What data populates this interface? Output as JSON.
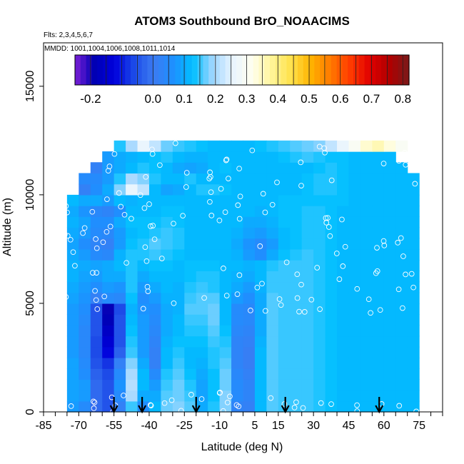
{
  "chart_data": {
    "type": "heatmap",
    "title": "ATOM3 Southbound BrO_NOAACIMS",
    "subtitle_flights": "Flts: 2,3,4,5,6,7",
    "subtitle_dates": "MMDD: 1001,1004,1006,1008,1011,1014",
    "xlabel": "Latitude (deg N)",
    "ylabel": "Altitude (m)",
    "xlim": [
      -85,
      85
    ],
    "ylim": [
      0,
      17000
    ],
    "x_ticks": [
      -85,
      -70,
      -55,
      -40,
      -25,
      -10,
      5,
      15,
      30,
      45,
      60,
      75
    ],
    "y_ticks": [
      0,
      5000,
      10000,
      15000
    ],
    "colorbar": {
      "range": [
        -0.25,
        0.82
      ],
      "ticks": [
        -0.2,
        0.0,
        0.1,
        0.2,
        0.3,
        0.4,
        0.5,
        0.6,
        0.7,
        0.8
      ],
      "tick_labels": [
        "-0.2",
        "0.0",
        "0.1",
        "0.2",
        "0.3",
        "0.4",
        "0.5",
        "0.6",
        "0.7",
        "0.8"
      ],
      "colors": [
        "#7b1fd6",
        "#0000b4",
        "#0000dc",
        "#1c4ae8",
        "#3b7bf2",
        "#1e90ff",
        "#00bfff",
        "#9fd6ff",
        "#e8f4ff",
        "#fffff0",
        "#fff59a",
        "#ffe14a",
        "#ffb300",
        "#ff7a00",
        "#ff3b00",
        "#e00000",
        "#b00000",
        "#7a1a1a"
      ]
    },
    "flight_arrows_lat": [
      -55,
      -43,
      -20,
      18,
      58
    ],
    "cells": {
      "lat_start": -75,
      "lat_step": 5,
      "alt_start": 0,
      "alt_step": 500,
      "values": [
        [
          0.08,
          0.05,
          -0.02,
          -0.05,
          0.02,
          0.15,
          0.06,
          0.12,
          0.17,
          0.18,
          0.16,
          0.1,
          0.14,
          0.18,
          0.03,
          0.02,
          0.12,
          0.16,
          0.15,
          0.15,
          0.15,
          0.14,
          0.13,
          0.12,
          0.12,
          0.12,
          0.12,
          0.12,
          0.12,
          0.12
        ],
        [
          0.09,
          0.08,
          -0.02,
          -0.05,
          0.05,
          0.2,
          0.1,
          0.1,
          0.16,
          0.17,
          0.15,
          0.09,
          0.13,
          0.18,
          0.05,
          0.03,
          0.12,
          0.16,
          0.15,
          0.15,
          0.15,
          0.14,
          0.13,
          0.12,
          0.12,
          0.12,
          0.12,
          0.12,
          0.12,
          0.12
        ],
        [
          0.09,
          0.08,
          -0.02,
          -0.05,
          0.07,
          0.21,
          0.12,
          0.08,
          0.15,
          0.17,
          0.14,
          0.09,
          0.13,
          0.17,
          0.05,
          0.03,
          0.12,
          0.16,
          0.15,
          0.15,
          0.15,
          0.14,
          0.13,
          0.12,
          0.12,
          0.12,
          0.12,
          0.12,
          0.12,
          0.12
        ],
        [
          0.09,
          0.06,
          -0.03,
          -0.06,
          0.05,
          0.2,
          0.12,
          0.05,
          0.14,
          0.16,
          0.13,
          0.1,
          0.13,
          0.17,
          0.04,
          0.02,
          0.12,
          0.16,
          0.15,
          0.15,
          0.15,
          0.14,
          0.13,
          0.12,
          0.12,
          0.12,
          0.12,
          0.12,
          0.12,
          0.12
        ],
        [
          0.09,
          0.05,
          -0.05,
          -0.08,
          0.02,
          0.18,
          0.1,
          0.02,
          0.12,
          0.15,
          0.12,
          0.11,
          0.14,
          0.16,
          0.03,
          0.01,
          0.12,
          0.16,
          0.15,
          0.15,
          0.15,
          0.14,
          0.13,
          0.12,
          0.12,
          0.12,
          0.12,
          0.12,
          0.12,
          0.12
        ],
        [
          0.08,
          0.04,
          -0.06,
          -0.12,
          -0.03,
          0.15,
          0.08,
          0.02,
          0.12,
          0.14,
          0.12,
          0.12,
          0.14,
          0.15,
          0.03,
          0.01,
          0.12,
          0.16,
          0.15,
          0.15,
          0.15,
          0.14,
          0.13,
          0.12,
          0.12,
          0.12,
          0.12,
          0.12,
          0.12,
          0.12
        ],
        [
          0.08,
          0.04,
          -0.06,
          -0.14,
          -0.05,
          0.14,
          0.08,
          0.03,
          0.11,
          0.13,
          0.13,
          0.13,
          0.15,
          0.14,
          0.03,
          0.02,
          0.11,
          0.16,
          0.15,
          0.15,
          0.15,
          0.14,
          0.13,
          0.12,
          0.12,
          0.12,
          0.12,
          0.12,
          0.12,
          0.12
        ],
        [
          0.08,
          0.04,
          -0.05,
          -0.16,
          -0.05,
          0.13,
          0.08,
          0.04,
          0.1,
          0.12,
          0.14,
          0.14,
          0.16,
          0.13,
          0.04,
          0.03,
          0.1,
          0.16,
          0.15,
          0.15,
          0.15,
          0.14,
          0.13,
          0.12,
          0.12,
          0.12,
          0.12,
          0.12,
          0.12,
          0.12
        ],
        [
          0.08,
          0.05,
          -0.05,
          -0.18,
          -0.05,
          0.12,
          0.08,
          0.05,
          0.1,
          0.12,
          0.15,
          0.15,
          0.17,
          0.12,
          0.05,
          0.04,
          0.1,
          0.16,
          0.15,
          0.15,
          0.15,
          0.14,
          0.13,
          0.12,
          0.12,
          0.12,
          0.12,
          0.12,
          0.12,
          0.12
        ],
        [
          0.08,
          0.06,
          -0.05,
          -0.19,
          -0.06,
          0.11,
          0.07,
          0.06,
          0.1,
          0.11,
          0.16,
          0.16,
          0.17,
          0.12,
          0.05,
          0.04,
          0.1,
          0.16,
          0.15,
          0.15,
          0.15,
          0.14,
          0.13,
          0.12,
          0.12,
          0.12,
          0.12,
          0.12,
          0.12,
          0.12
        ],
        [
          0.09,
          0.07,
          0.02,
          0.05,
          0.04,
          0.13,
          0.06,
          0.08,
          0.11,
          0.11,
          0.15,
          0.16,
          0.16,
          0.12,
          0.08,
          0.06,
          0.1,
          0.16,
          0.15,
          0.15,
          0.15,
          0.14,
          0.13,
          0.12,
          0.12,
          0.12,
          0.12,
          0.12,
          0.12,
          0.12
        ],
        [
          0.1,
          0.08,
          0.06,
          0.08,
          0.07,
          0.14,
          0.08,
          0.1,
          0.12,
          0.11,
          0.14,
          0.15,
          0.14,
          0.12,
          0.1,
          0.08,
          0.11,
          0.15,
          0.15,
          0.15,
          0.15,
          0.14,
          0.13,
          0.12,
          0.12,
          0.12,
          0.12,
          0.12,
          0.12,
          0.12
        ],
        [
          0.11,
          0.09,
          0.08,
          0.1,
          0.1,
          0.14,
          0.1,
          0.12,
          0.12,
          0.12,
          0.13,
          0.14,
          0.14,
          0.12,
          0.11,
          0.1,
          0.12,
          0.15,
          0.15,
          0.15,
          0.15,
          0.14,
          0.13,
          0.12,
          0.12,
          0.12,
          0.12,
          0.12,
          0.12,
          0.12
        ],
        [
          0.11,
          0.1,
          0.09,
          0.1,
          0.12,
          0.14,
          0.12,
          0.13,
          0.13,
          0.12,
          0.13,
          0.13,
          0.13,
          0.12,
          0.12,
          0.11,
          0.12,
          0.14,
          0.15,
          0.15,
          0.15,
          0.14,
          0.13,
          0.12,
          0.12,
          0.12,
          0.12,
          0.12,
          0.12,
          0.12
        ],
        [
          0.1,
          0.08,
          0.05,
          0.04,
          0.11,
          0.14,
          0.14,
          0.15,
          0.14,
          0.13,
          0.12,
          0.12,
          0.12,
          0.12,
          0.11,
          0.08,
          0.06,
          0.1,
          0.13,
          0.14,
          0.15,
          0.14,
          0.13,
          0.12,
          0.12,
          0.12,
          0.12,
          0.12,
          0.12,
          0.12
        ],
        [
          0.09,
          0.06,
          0.03,
          0.02,
          0.08,
          0.13,
          0.14,
          0.16,
          0.15,
          0.14,
          0.12,
          0.12,
          0.12,
          0.12,
          0.1,
          0.07,
          0.05,
          0.08,
          0.12,
          0.13,
          0.14,
          0.14,
          0.13,
          0.12,
          0.12,
          0.12,
          0.12,
          0.12,
          0.12,
          0.12
        ],
        [
          0.1,
          0.08,
          0.05,
          0.04,
          0.08,
          0.12,
          0.13,
          0.14,
          0.15,
          0.14,
          0.12,
          0.12,
          0.12,
          0.12,
          0.11,
          0.09,
          0.08,
          0.1,
          0.12,
          0.13,
          0.14,
          0.14,
          0.13,
          0.12,
          0.12,
          0.12,
          0.12,
          0.12,
          0.12,
          0.12
        ],
        [
          0.11,
          0.09,
          0.06,
          0.06,
          0.1,
          0.13,
          0.13,
          0.13,
          0.14,
          0.13,
          0.12,
          0.12,
          0.12,
          0.12,
          0.12,
          0.1,
          0.1,
          0.11,
          0.13,
          0.13,
          0.14,
          0.14,
          0.13,
          0.12,
          0.12,
          0.12,
          0.12,
          0.12,
          0.12,
          0.12
        ],
        [
          0.1,
          0.07,
          0.04,
          0.03,
          0.06,
          0.12,
          0.12,
          0.12,
          0.13,
          0.13,
          0.12,
          0.12,
          0.12,
          0.12,
          0.12,
          0.12,
          0.11,
          0.12,
          0.13,
          0.13,
          0.14,
          0.14,
          0.13,
          0.12,
          0.12,
          0.12,
          0.12,
          0.12,
          0.12,
          0.12
        ],
        [
          0.12,
          0.1,
          0.1,
          0.08,
          0.12,
          0.11,
          0.12,
          0.12,
          0.12,
          0.12,
          0.12,
          0.12,
          0.12,
          0.12,
          0.12,
          0.12,
          0.12,
          0.12,
          0.13,
          0.13,
          0.13,
          0.13,
          0.13,
          0.13,
          0.12,
          0.12,
          0.12,
          0.12,
          0.12,
          0.12
        ],
        [
          0.1,
          0.02,
          0.06,
          0.1,
          0.18,
          0.26,
          0.22,
          0.12,
          0.09,
          0.1,
          0.12,
          0.14,
          0.14,
          0.13,
          0.12,
          0.12,
          0.12,
          0.12,
          0.12,
          0.12,
          0.13,
          0.14,
          0.14,
          0.13,
          0.12,
          0.12,
          0.12,
          0.12,
          0.12,
          0.12
        ],
        [
          0.1,
          0.05,
          0.05,
          0.08,
          0.14,
          0.2,
          0.18,
          0.14,
          0.12,
          0.12,
          0.14,
          0.12,
          0.12,
          0.12,
          0.12,
          0.12,
          0.12,
          0.12,
          0.12,
          0.12,
          0.13,
          0.14,
          0.14,
          0.13,
          0.12,
          0.12,
          0.12,
          0.12,
          0.12,
          0.12
        ],
        [
          0.03,
          0.04,
          0.02,
          0.08,
          0.1,
          0.12,
          0.14,
          0.13,
          0.12,
          0.1,
          0.09,
          0.1,
          0.12,
          0.13,
          0.12,
          0.12,
          0.12,
          0.12,
          0.12,
          0.12,
          0.12,
          0.13,
          0.14,
          0.13,
          0.12,
          0.12,
          0.12,
          0.12,
          0.12,
          0.12
        ],
        [
          0.05,
          0.04,
          0.05,
          0.08,
          0.1,
          0.11,
          0.12,
          0.13,
          0.14,
          0.12,
          0.11,
          0.11,
          0.12,
          0.12,
          0.12,
          0.12,
          0.12,
          0.12,
          0.13,
          0.14,
          0.15,
          0.14,
          0.13,
          0.13,
          0.12,
          0.12,
          0.12,
          0.12,
          0.12,
          0.12
        ],
        [
          0.12,
          0.1,
          0.1,
          0.12,
          0.14,
          0.2,
          0.26,
          0.22,
          0.17,
          0.15,
          0.14,
          0.13,
          0.12,
          0.12,
          0.12,
          0.12,
          0.13,
          0.14,
          0.15,
          0.16,
          0.17,
          0.18,
          0.22,
          0.26,
          0.3,
          0.34,
          0.36,
          0.33,
          0.3,
          0.3
        ]
      ]
    }
  }
}
